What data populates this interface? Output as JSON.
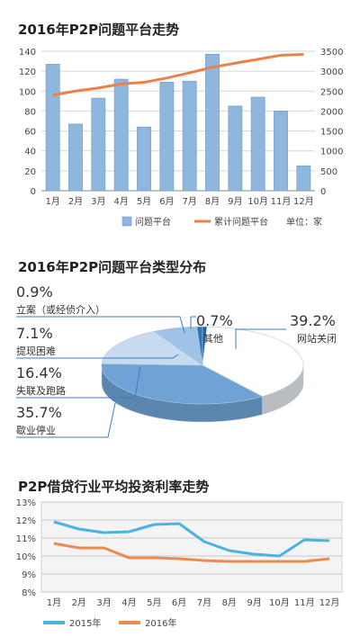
{
  "chart_data": [
    {
      "type": "bar",
      "title": "2016年P2P问题平台走势",
      "categories": [
        "1月",
        "2月",
        "3月",
        "4月",
        "5月",
        "6月",
        "7月",
        "8月",
        "9月",
        "10月",
        "11月",
        "12月"
      ],
      "series": [
        {
          "name": "问题平台",
          "type": "bar",
          "axis": "left",
          "color": "#8fb6dc",
          "values": [
            127,
            67,
            93,
            112,
            64,
            109,
            110,
            137,
            85,
            94,
            80,
            25
          ]
        },
        {
          "name": "累计问题平台",
          "type": "line",
          "axis": "right",
          "color": "#e8814a",
          "values": [
            2400,
            2500,
            2580,
            2680,
            2720,
            2830,
            2960,
            3100,
            3200,
            3300,
            3400,
            3420
          ]
        }
      ],
      "yleft": {
        "range": [
          0,
          140
        ],
        "ticks": [
          0,
          20,
          40,
          60,
          80,
          100,
          120,
          140
        ]
      },
      "yright": {
        "range": [
          0,
          3500
        ],
        "ticks": [
          0,
          500,
          1000,
          1500,
          2000,
          2500,
          3000,
          3500
        ]
      },
      "unit_note": "单位：家",
      "grid": true,
      "legend": "bottom"
    },
    {
      "type": "pie",
      "title": "2016年P2P问题平台类型分布",
      "slices": [
        {
          "name": "网站关闭",
          "value": 39.2,
          "label": "39.2%",
          "color": "#ffffff"
        },
        {
          "name": "歇业停业",
          "value": 35.7,
          "label": "35.7%",
          "color": "#6fa3d6"
        },
        {
          "name": "失联及跑路",
          "value": 16.4,
          "label": "16.4%",
          "color": "#c6dbef"
        },
        {
          "name": "提现困难",
          "value": 7.1,
          "label": "7.1%",
          "color": "#9fc3e6"
        },
        {
          "name": "立案（或经侦介入）",
          "value": 0.9,
          "label": "0.9%",
          "color": "#2f73b7"
        },
        {
          "name": "其他",
          "value": 0.7,
          "label": "0.7%",
          "color": "#1f5fa8"
        }
      ]
    },
    {
      "type": "line",
      "title": "P2P借贷行业平均投资利率走势",
      "categories": [
        "1月",
        "2月",
        "3月",
        "4月",
        "5月",
        "6月",
        "7月",
        "8月",
        "9月",
        "10月",
        "11月",
        "12月"
      ],
      "series": [
        {
          "name": "2015年",
          "color": "#49b3e3",
          "values": [
            11.9,
            11.5,
            11.3,
            11.35,
            11.75,
            11.8,
            10.8,
            10.3,
            10.1,
            10.0,
            10.9,
            10.85
          ]
        },
        {
          "name": "2016年",
          "color": "#ef8a4c",
          "values": [
            10.7,
            10.45,
            10.45,
            9.9,
            9.9,
            9.85,
            9.75,
            9.7,
            9.7,
            9.7,
            9.7,
            9.85
          ]
        }
      ],
      "y": {
        "range": [
          8,
          13
        ],
        "ticks": [
          "8%",
          "9%",
          "10%",
          "11%",
          "12%",
          "13%"
        ]
      },
      "grid": true,
      "legend": "bottom"
    }
  ]
}
